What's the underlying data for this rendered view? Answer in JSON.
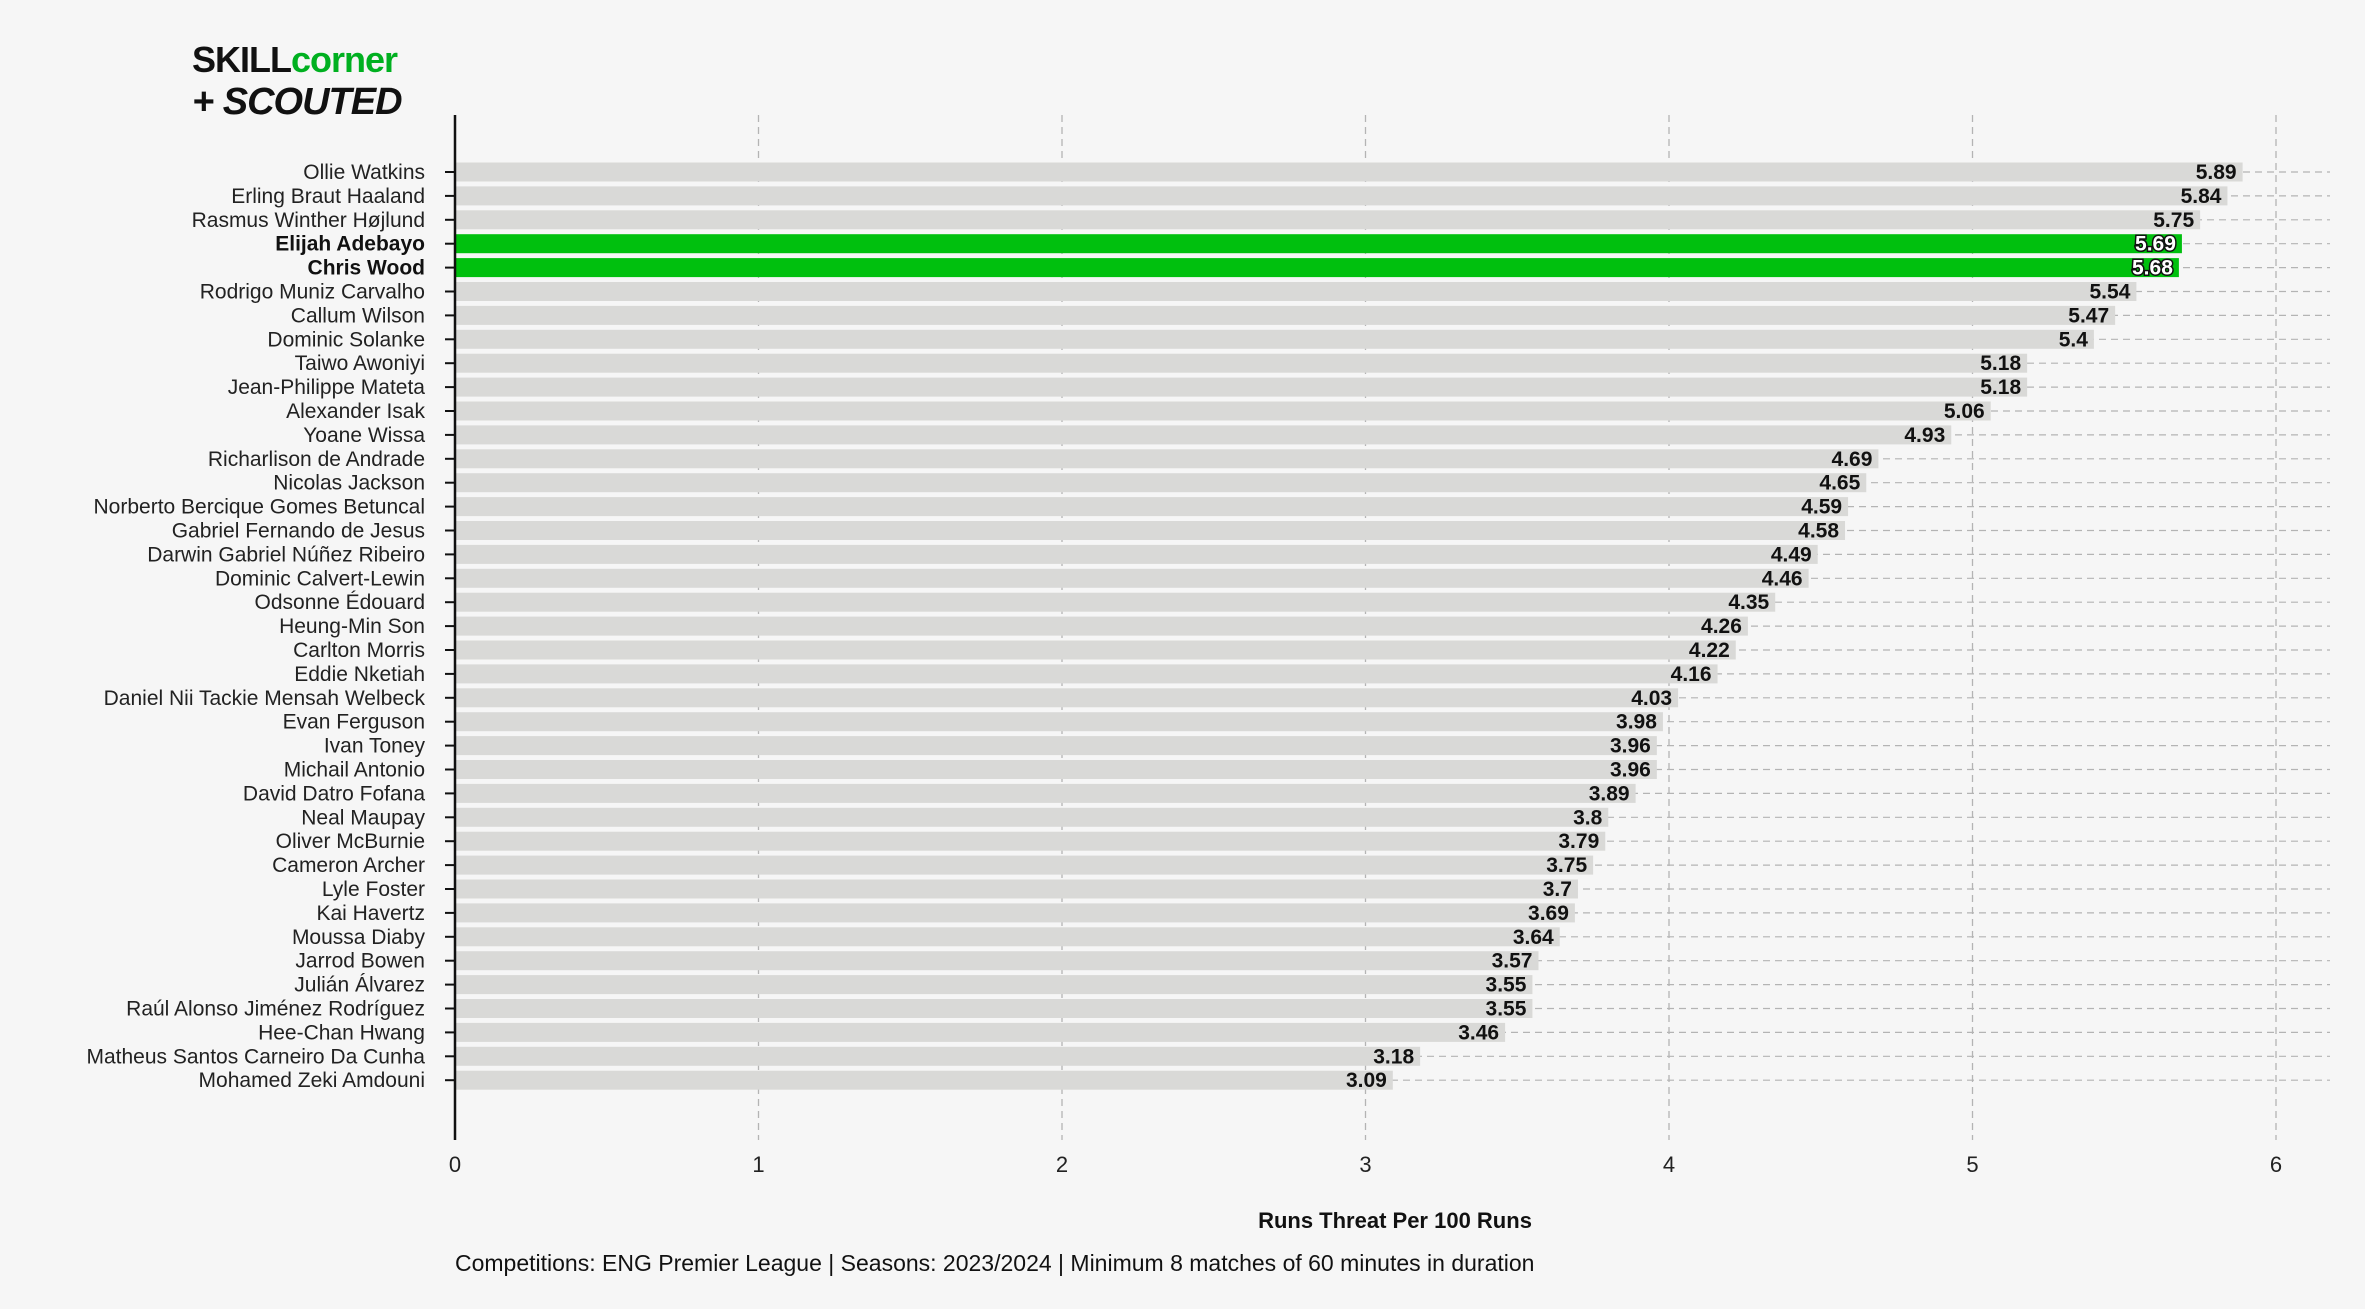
{
  "logo": {
    "line1_a": "SKILL",
    "line1_b": "corner",
    "line2": "+ SCOUTED"
  },
  "colors": {
    "bar": "#d9d9d7",
    "highlight": "#00c00e",
    "grid": "#b4b4b4",
    "axis": "#111111",
    "brand_green": "#00b020"
  },
  "caption": "Competitions: ENG Premier League | Seasons: 2023/2024 | Minimum 8 matches of 60 minutes in duration",
  "chart_data": {
    "type": "bar",
    "orientation": "horizontal",
    "title": "",
    "xlabel": "Runs Threat Per 100 Runs",
    "ylabel": "",
    "xlim": [
      0,
      6
    ],
    "xticks": [
      "0",
      "1",
      "2",
      "3",
      "4",
      "5",
      "6"
    ],
    "grid": "dashed vertical and horizontal",
    "highlighted": [
      "Elijah Adebayo",
      "Chris Wood"
    ],
    "categories": [
      "Ollie Watkins",
      "Erling Braut Haaland",
      "Rasmus Winther Højlund",
      "Elijah Adebayo",
      "Chris Wood",
      "Rodrigo Muniz Carvalho",
      "Callum Wilson",
      "Dominic Solanke",
      "Taiwo Awoniyi",
      "Jean-Philippe Mateta",
      "Alexander Isak",
      "Yoane Wissa",
      "Richarlison de Andrade",
      "Nicolas Jackson",
      "Norberto Bercique Gomes Betuncal",
      "Gabriel Fernando de Jesus",
      "Darwin Gabriel Núñez Ribeiro",
      "Dominic Calvert-Lewin",
      "Odsonne Édouard",
      "Heung-Min Son",
      "Carlton Morris",
      "Eddie Nketiah",
      "Daniel Nii Tackie Mensah Welbeck",
      "Evan Ferguson",
      "Ivan Toney",
      "Michail Antonio",
      "David Datro Fofana",
      "Neal Maupay",
      "Oliver McBurnie",
      "Cameron Archer",
      "Lyle Foster",
      "Kai Havertz",
      "Moussa Diaby",
      "Jarrod Bowen",
      "Julián Álvarez",
      "Raúl Alonso Jiménez Rodríguez",
      "Hee-Chan Hwang",
      "Matheus Santos Carneiro Da Cunha",
      "Mohamed Zeki Amdouni"
    ],
    "values": [
      5.89,
      5.84,
      5.75,
      5.69,
      5.68,
      5.54,
      5.47,
      5.4,
      5.18,
      5.18,
      5.06,
      4.93,
      4.69,
      4.65,
      4.59,
      4.58,
      4.49,
      4.46,
      4.35,
      4.26,
      4.22,
      4.16,
      4.03,
      3.98,
      3.96,
      3.96,
      3.89,
      3.8,
      3.79,
      3.75,
      3.7,
      3.69,
      3.64,
      3.57,
      3.55,
      3.55,
      3.46,
      3.18,
      3.09
    ],
    "value_labels": [
      "5.89",
      "5.84",
      "5.75",
      "5.69",
      "5.68",
      "5.54",
      "5.47",
      "5.4",
      "5.18",
      "5.18",
      "5.06",
      "4.93",
      "4.69",
      "4.65",
      "4.59",
      "4.58",
      "4.49",
      "4.46",
      "4.35",
      "4.26",
      "4.22",
      "4.16",
      "4.03",
      "3.98",
      "3.96",
      "3.96",
      "3.89",
      "3.8",
      "3.79",
      "3.75",
      "3.7",
      "3.69",
      "3.64",
      "3.57",
      "3.55",
      "3.55",
      "3.46",
      "3.18",
      "3.09"
    ]
  }
}
